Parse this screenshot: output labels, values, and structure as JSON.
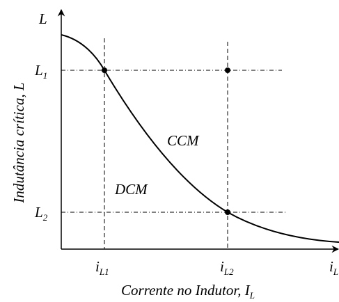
{
  "axes": {
    "y_symbol": "L",
    "y_title": "Indutância crítica, L",
    "x_title": {
      "base": "Corrente no Indutor, I",
      "sub": "L"
    }
  },
  "y_marks": [
    {
      "base": "L",
      "sub": "1"
    },
    {
      "base": "L",
      "sub": "2"
    }
  ],
  "x_marks": [
    {
      "base": "i",
      "sub": "L1"
    },
    {
      "base": "i",
      "sub": "L2"
    },
    {
      "base": "i",
      "sub": "L"
    }
  ],
  "regions": [
    "CCM",
    "DCM"
  ]
}
